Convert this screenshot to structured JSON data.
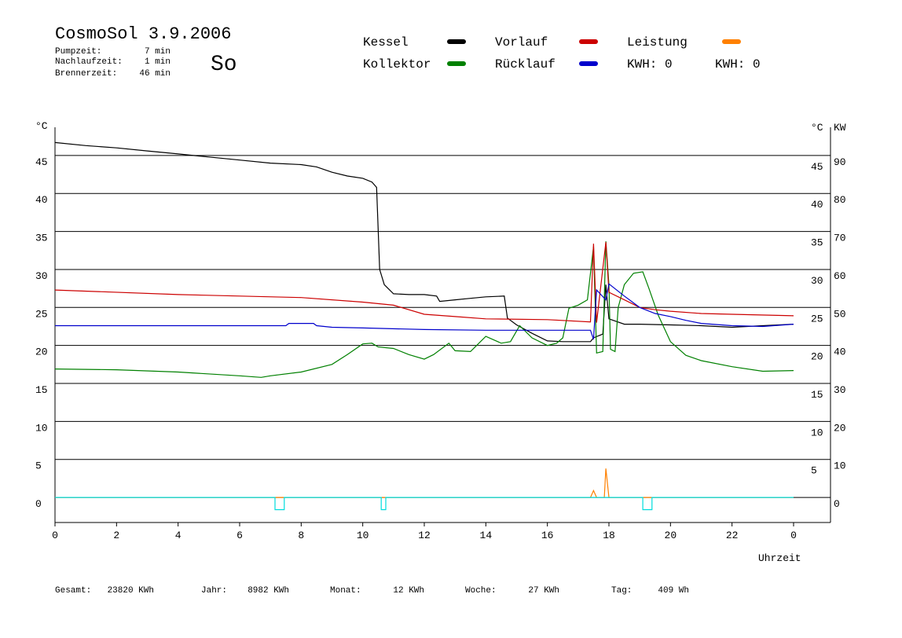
{
  "chart_data": {
    "type": "line",
    "title": "CosmoSol 3.9.2006",
    "info": [
      {
        "label": "Pumpzeit:",
        "value": "7 min"
      },
      {
        "label": "Nachlaufzeit:",
        "value": "1 min"
      },
      {
        "label": "Brennerzeit:",
        "value": "46 min"
      }
    ],
    "day": "So",
    "day_color": "#e00000",
    "kwh_labels": [
      {
        "text": "KWH: 0",
        "color": "#e08000"
      },
      {
        "text": "KWH: 0",
        "color": "#800080"
      }
    ],
    "y_label": "°C",
    "y2_label_left": "°C",
    "y2_label": "KW",
    "y2_color": "#e08000",
    "x_label": "Uhrzeit",
    "xlim": [
      0,
      25.2
    ],
    "xticks": [
      0,
      2,
      4,
      6,
      8,
      10,
      12,
      14,
      16,
      18,
      20,
      22,
      {
        "value": 24,
        "label": "0"
      }
    ],
    "ylim": [
      -3.3,
      48.4
    ],
    "yticks": [
      0,
      5,
      10,
      15,
      20,
      25,
      30,
      35,
      40,
      45
    ],
    "yticks_right": [
      5,
      10,
      15,
      20,
      25,
      30,
      35,
      40,
      45
    ],
    "y2lim": [
      -6.6,
      96.8
    ],
    "y2ticks": [
      0,
      10,
      20,
      30,
      40,
      50,
      60,
      70,
      80,
      90
    ],
    "grid": true,
    "series": [
      {
        "name": "Kessel",
        "color": "#000000",
        "x": [
          0,
          1,
          2,
          3,
          4,
          5,
          6,
          7,
          8,
          8.5,
          9,
          9.5,
          10,
          10.3,
          10.45,
          10.55,
          10.7,
          11,
          11.5,
          12,
          12.4,
          12.5,
          13,
          13.5,
          14,
          14.6,
          14.7,
          15,
          15.5,
          16,
          16.5,
          17,
          17.4,
          17.5,
          17.8,
          17.9,
          18,
          18.5,
          19,
          20,
          21,
          22,
          23,
          24
        ],
        "values": [
          46.7,
          46.3,
          46,
          45.6,
          45.2,
          44.8,
          44.4,
          44,
          43.8,
          43.5,
          42.8,
          42.3,
          42,
          41.5,
          40.8,
          30,
          28,
          26.8,
          26.7,
          26.7,
          26.5,
          25.8,
          26,
          26.2,
          26.4,
          26.5,
          23.6,
          22.7,
          21.6,
          20.6,
          20.5,
          20.5,
          20.5,
          21,
          21.5,
          28,
          23.5,
          22.8,
          22.8,
          22.7,
          22.6,
          22.4,
          22.6,
          22.8
        ]
      },
      {
        "name": "Kollektor",
        "color": "#008000",
        "x": [
          0,
          2,
          4,
          6,
          6.7,
          7,
          8,
          9,
          9.5,
          10,
          10.3,
          10.5,
          11,
          11.5,
          12,
          12.3,
          12.8,
          13,
          13.5,
          14,
          14.5,
          14.8,
          15.1,
          15.5,
          16,
          16.3,
          16.5,
          16.7,
          17,
          17.3,
          17.5,
          17.6,
          17.8,
          17.9,
          18,
          18.05,
          18.2,
          18.3,
          18.5,
          18.8,
          19.1,
          19.3,
          19.6,
          20,
          20.5,
          21,
          22,
          23,
          24
        ],
        "values": [
          16.9,
          16.8,
          16.5,
          16,
          15.8,
          16,
          16.5,
          17.5,
          18.8,
          20.2,
          20.3,
          19.8,
          19.6,
          18.8,
          18.2,
          18.8,
          20.3,
          19.3,
          19.2,
          21.2,
          20.3,
          20.5,
          22.6,
          21,
          20,
          20.3,
          21,
          24.9,
          25.3,
          26,
          33,
          19,
          19.2,
          33.7,
          28,
          19.5,
          19.2,
          25,
          28,
          29.5,
          29.7,
          27.5,
          24,
          20.5,
          18.7,
          18,
          17.2,
          16.6,
          16.7
        ]
      },
      {
        "name": "Vorlauf",
        "color": "#cc0000",
        "x": [
          0,
          4,
          8,
          10,
          11,
          12,
          13,
          14,
          16,
          17.4,
          17.5,
          17.6,
          17.9,
          18,
          18.5,
          19,
          19.5,
          20,
          21,
          22,
          24
        ],
        "values": [
          27.3,
          26.7,
          26.3,
          25.7,
          25.3,
          24.1,
          23.8,
          23.5,
          23.4,
          23.1,
          33.4,
          23,
          33.6,
          27,
          26,
          25,
          24.7,
          24.5,
          24.2,
          24.1,
          23.9
        ]
      },
      {
        "name": "Rücklauf",
        "color": "#0000cc",
        "x": [
          0,
          7.5,
          7.6,
          8.4,
          8.5,
          9,
          10,
          12,
          14,
          16,
          17.4,
          17.5,
          17.6,
          17.9,
          18,
          18.5,
          19,
          19.5,
          20,
          20.5,
          21,
          22,
          23,
          24
        ],
        "values": [
          22.6,
          22.6,
          22.9,
          22.9,
          22.6,
          22.4,
          22.3,
          22.1,
          22,
          22,
          22,
          20.8,
          27.3,
          26,
          28.1,
          26.5,
          25,
          24.2,
          23.8,
          23.3,
          22.9,
          22.6,
          22.5,
          22.8
        ]
      },
      {
        "name": "Leistung",
        "color": "#ff8000",
        "axis": "y2",
        "x": [
          0,
          17.4,
          17.5,
          17.6,
          17.85,
          17.9,
          18,
          24
        ],
        "values": [
          0,
          0,
          1.8,
          0,
          0,
          7.6,
          0,
          0
        ]
      },
      {
        "color": "#00dddd",
        "x": [
          0,
          7.15,
          7.15,
          7.45,
          7.45,
          10.6,
          10.6,
          10.75,
          10.75,
          19.1,
          19.1,
          19.4,
          19.4,
          24
        ],
        "values": [
          0,
          0,
          -1.6,
          -1.6,
          0,
          0,
          -1.6,
          -1.6,
          0,
          0,
          -1.6,
          -1.6,
          0,
          0
        ]
      }
    ],
    "footer": [
      {
        "label": "Gesamt:",
        "value": "23820 KWh"
      },
      {
        "label": "Jahr:",
        "value": "8982 KWh"
      },
      {
        "label": "Monat:",
        "value": "12 KWh"
      },
      {
        "label": "Woche:",
        "value": "27 KWh"
      },
      {
        "label": "Tag:",
        "value": "409 Wh"
      }
    ]
  }
}
